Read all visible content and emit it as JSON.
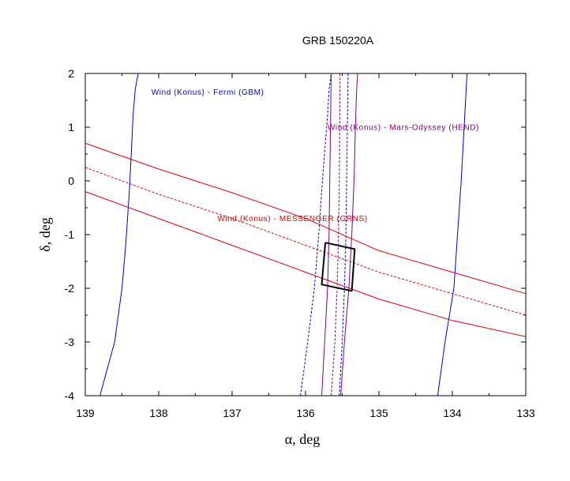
{
  "chart_data": {
    "type": "line",
    "title": "GRB 150220A",
    "xlabel": "α, deg",
    "ylabel": "δ, deg",
    "xlim": [
      139,
      133
    ],
    "ylim": [
      -4,
      2
    ],
    "x_reversed": true,
    "xticks": [
      139,
      138,
      137,
      136,
      135,
      134,
      133
    ],
    "yticks": [
      2,
      1,
      0,
      -1,
      -2,
      -3,
      -4
    ],
    "grid": false,
    "colors": {
      "fermi": "#0000cc",
      "mars": "#800080",
      "messenger": "#dd0000",
      "box": "#000000"
    },
    "annotations": [
      {
        "text": "Wind (Konus) - Fermi (GBM)",
        "color": "#0000cc",
        "x": 138.1,
        "y": 1.6
      },
      {
        "text": "Wind (Konus) - Mars-Odyssey (HEND)",
        "color": "#800080",
        "x": 135.7,
        "y": 0.95
      },
      {
        "text": "Wind (Konus) - MESSENGER (GRNS)",
        "color": "#dd0000",
        "x": 137.2,
        "y": -0.75
      }
    ],
    "series": [
      {
        "group": "fermi",
        "style": "solid",
        "x": [
          138.8,
          138.6,
          138.5,
          138.45,
          138.4,
          138.37,
          138.35,
          138.32,
          138.28
        ],
        "y": [
          -4,
          -3,
          -2,
          -1.2,
          -0.2,
          0.6,
          1.2,
          1.7,
          2
        ]
      },
      {
        "group": "fermi",
        "style": "solid",
        "x": [
          134.2,
          134.1,
          133.98,
          133.93,
          133.88,
          133.84,
          133.8
        ],
        "y": [
          -4,
          -3,
          -2,
          -1,
          0,
          1,
          2
        ]
      },
      {
        "group": "mars",
        "style": "solid",
        "x": [
          135.78,
          135.74,
          135.7,
          135.68,
          135.67,
          135.66,
          135.65
        ],
        "y": [
          -4,
          -3,
          -2,
          -1,
          0,
          1,
          2
        ]
      },
      {
        "group": "mars",
        "style": "solid",
        "x": [
          135.52,
          135.47,
          135.41,
          135.37,
          135.34,
          135.32,
          135.31,
          135.3,
          135.29
        ],
        "y": [
          -4,
          -3,
          -2,
          -1,
          0,
          1,
          1.5,
          1.8,
          2
        ]
      },
      {
        "group": "mars",
        "style": "dashed",
        "x": [
          135.65,
          135.6,
          135.57,
          135.55,
          135.54,
          135.53
        ],
        "y": [
          -4,
          -3,
          -2,
          -1,
          0,
          2
        ]
      },
      {
        "group": "fermi",
        "style": "dashed",
        "x": [
          136.07,
          135.97,
          135.88,
          135.82,
          135.77,
          135.73,
          135.7,
          135.68,
          135.65
        ],
        "y": [
          -4,
          -3,
          -2,
          -1,
          0,
          0.7,
          1.2,
          1.7,
          2
        ]
      },
      {
        "group": "fermi",
        "style": "dashed",
        "x": [
          135.54,
          135.5,
          135.47,
          135.45,
          135.44,
          135.42
        ],
        "y": [
          -4,
          -3,
          -2,
          -1,
          0,
          2
        ]
      },
      {
        "group": "messenger",
        "style": "solid",
        "x": [
          139,
          138,
          137,
          136,
          135,
          134,
          133
        ],
        "y": [
          0.7,
          0.22,
          -0.22,
          -0.7,
          -1.3,
          -1.7,
          -2.1
        ]
      },
      {
        "group": "messenger",
        "style": "dashed",
        "x": [
          139,
          138,
          137,
          136,
          135,
          134,
          133
        ],
        "y": [
          0.25,
          -0.25,
          -0.7,
          -1.2,
          -1.7,
          -2.1,
          -2.5
        ]
      },
      {
        "group": "messenger",
        "style": "solid",
        "x": [
          139,
          138,
          137,
          136,
          135,
          134,
          133
        ],
        "y": [
          -0.2,
          -0.7,
          -1.2,
          -1.7,
          -2.2,
          -2.6,
          -2.9
        ]
      },
      {
        "group": "box",
        "style": "solid",
        "x": [
          135.73,
          135.33,
          135.37,
          135.78,
          135.73
        ],
        "y": [
          -1.15,
          -1.27,
          -2.05,
          -1.93,
          -1.15
        ]
      }
    ]
  }
}
